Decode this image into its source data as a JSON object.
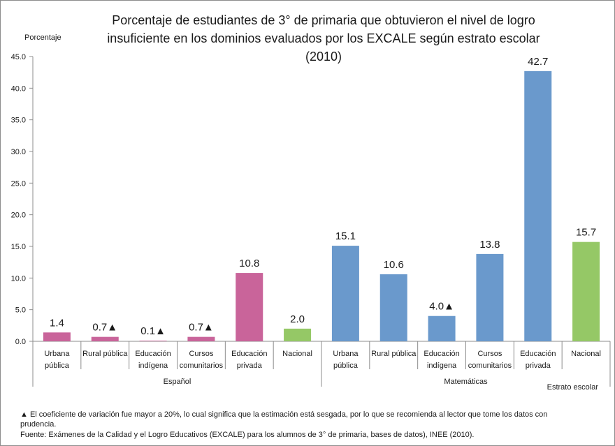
{
  "chart_data": {
    "type": "bar",
    "title_lines": [
      "Porcentaje de estudiantes de 3° de primaria que obtuvieron el nivel de logro",
      "insuficiente en los dominios evaluados por los EXCALE según estrato escolar",
      "(2010)"
    ],
    "ylabel": "Porcentaje",
    "xlabel": "Estrato escolar",
    "ylim": [
      0,
      45
    ],
    "yticks": [
      "0.0",
      "5.0",
      "10.0",
      "15.0",
      "20.0",
      "25.0",
      "30.0",
      "35.0",
      "40.0",
      "45.0"
    ],
    "groups": [
      "Español",
      "Matemáticas"
    ],
    "bars": [
      {
        "group": "Español",
        "category": [
          "Urbana",
          "pública"
        ],
        "value": 1.4,
        "label": "1.4",
        "color": "#c9649a"
      },
      {
        "group": "Español",
        "category": [
          "Rural pública"
        ],
        "value": 0.7,
        "label": "0.7▲",
        "color": "#c9649a"
      },
      {
        "group": "Español",
        "category": [
          "Educación",
          "indígena"
        ],
        "value": 0.1,
        "label": "0.1▲",
        "color": "#c9649a"
      },
      {
        "group": "Español",
        "category": [
          "Cursos",
          "comunitarios"
        ],
        "value": 0.7,
        "label": "0.7▲",
        "color": "#c9649a"
      },
      {
        "group": "Español",
        "category": [
          "Educación",
          "privada"
        ],
        "value": 10.8,
        "label": "10.8",
        "color": "#c9649a"
      },
      {
        "group": "Español",
        "category": [
          "Nacional"
        ],
        "value": 2.0,
        "label": "2.0",
        "color": "#95c866"
      },
      {
        "group": "Matemáticas",
        "category": [
          "Urbana",
          "pública"
        ],
        "value": 15.1,
        "label": "15.1",
        "color": "#6a99cc"
      },
      {
        "group": "Matemáticas",
        "category": [
          "Rural pública"
        ],
        "value": 10.6,
        "label": "10.6",
        "color": "#6a99cc"
      },
      {
        "group": "Matemáticas",
        "category": [
          "Educación",
          "indígena"
        ],
        "value": 4.0,
        "label": "4.0▲",
        "color": "#6a99cc"
      },
      {
        "group": "Matemáticas",
        "category": [
          "Cursos",
          "comunitarios"
        ],
        "value": 13.8,
        "label": "13.8",
        "color": "#6a99cc"
      },
      {
        "group": "Matemáticas",
        "category": [
          "Educación",
          "privada"
        ],
        "value": 42.7,
        "label": "42.7",
        "color": "#6a99cc"
      },
      {
        "group": "Matemáticas",
        "category": [
          "Nacional"
        ],
        "value": 15.7,
        "label": "15.7",
        "color": "#95c866"
      }
    ],
    "grid": false
  },
  "footnotes": {
    "cv_note_line1": "▲ El coeficiente de variación fue mayor a 20%, lo cual significa que la estimación está sesgada, por lo que se recomienda al lector que tome los datos con",
    "cv_note_line2": "prudencia.",
    "source": "Fuente: Exámenes de la Calidad y el Logro Educativos (EXCALE) para los alumnos de 3° de primaria, bases de datos), INEE (2010)."
  }
}
